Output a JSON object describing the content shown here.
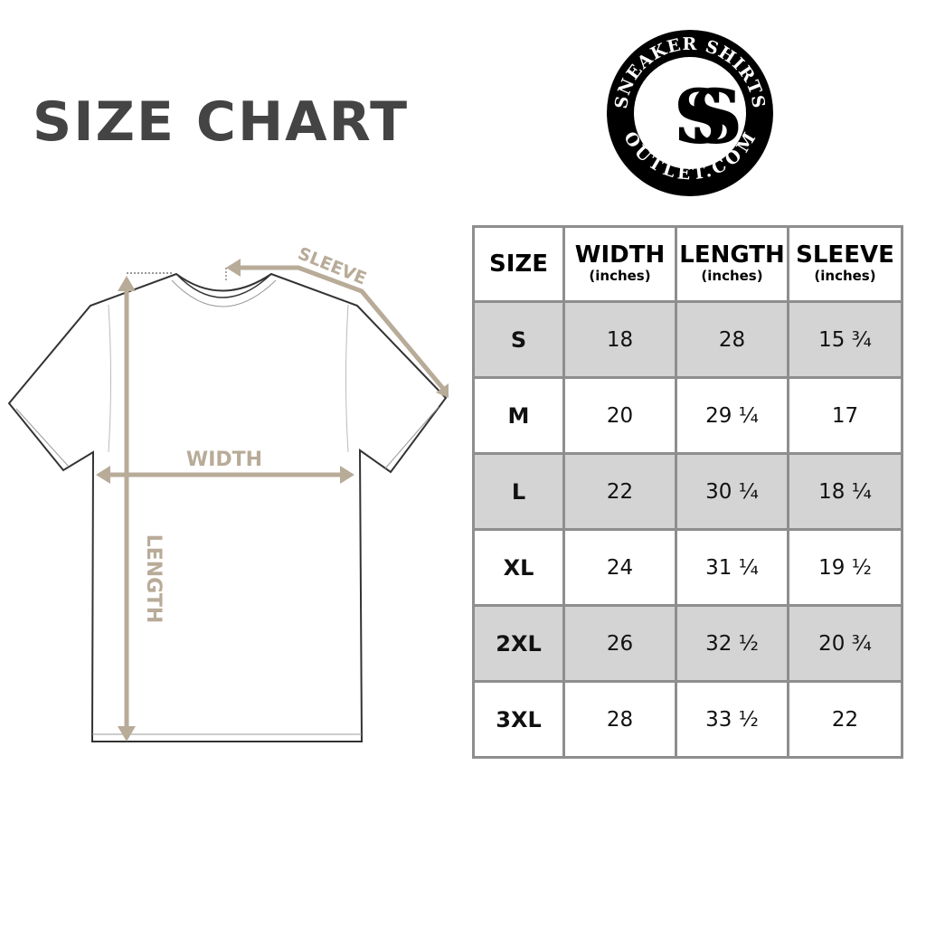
{
  "title": "SIZE CHART",
  "logo": {
    "text_top": "SNEAKER SHIRTS",
    "text_bottom": "OUTLET.COM",
    "monogram": "SS"
  },
  "diagram": {
    "sleeve_label": "SLEEVE",
    "width_label": "WIDTH",
    "length_label": "LENGTH",
    "accent_color": "#b8ab98"
  },
  "table": {
    "headers": [
      {
        "label": "SIZE",
        "unit": ""
      },
      {
        "label": "WIDTH",
        "unit": "(inches)"
      },
      {
        "label": "LENGTH",
        "unit": "(inches)"
      },
      {
        "label": "SLEEVE",
        "unit": "(inches)"
      }
    ],
    "rows": [
      [
        "S",
        "18",
        "28",
        "15 ¾"
      ],
      [
        "M",
        "20",
        "29 ¼",
        "17"
      ],
      [
        "L",
        "22",
        "30 ¼",
        "18 ¼"
      ],
      [
        "XL",
        "24",
        "31 ¼",
        "19 ½"
      ],
      [
        "2XL",
        "26",
        "32 ½",
        "20 ¾"
      ],
      [
        "3XL",
        "28",
        "33 ½",
        "22"
      ]
    ]
  }
}
